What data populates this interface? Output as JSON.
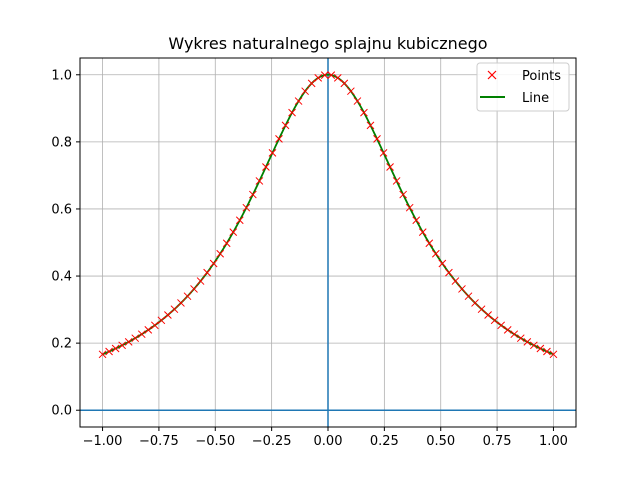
{
  "chart_data": {
    "type": "line",
    "title": "Wykres naturalnego splajnu kubicznego",
    "xlabel": "",
    "ylabel": "",
    "xlim": [
      -1.1,
      1.1
    ],
    "ylim": [
      -0.05,
      1.05
    ],
    "x_ticks": [
      -1.0,
      -0.75,
      -0.5,
      -0.25,
      0.0,
      0.25,
      0.5,
      0.75,
      1.0
    ],
    "x_tick_labels": [
      "−1.00",
      "−0.75",
      "−0.50",
      "−0.25",
      "0.00",
      "0.25",
      "0.50",
      "0.75",
      "1.00"
    ],
    "y_ticks": [
      0.0,
      0.2,
      0.4,
      0.6,
      0.8,
      1.0
    ],
    "y_tick_labels": [
      "0.0",
      "0.2",
      "0.4",
      "0.6",
      "0.8",
      "1.0"
    ],
    "grid": true,
    "legend_position": "top-right",
    "reference_lines": {
      "x": 0,
      "y": 0,
      "color": "#1f77b4"
    },
    "function": "1/(1+5x^2)",
    "series": [
      {
        "name": "Points",
        "style": "marker-x",
        "color": "#ff0000",
        "x_start": -1.0,
        "x_end": 1.0,
        "count": 70
      },
      {
        "name": "Line",
        "style": "line",
        "color": "#008000",
        "x_start": -1.0,
        "x_end": 1.0,
        "count": 400
      }
    ]
  }
}
